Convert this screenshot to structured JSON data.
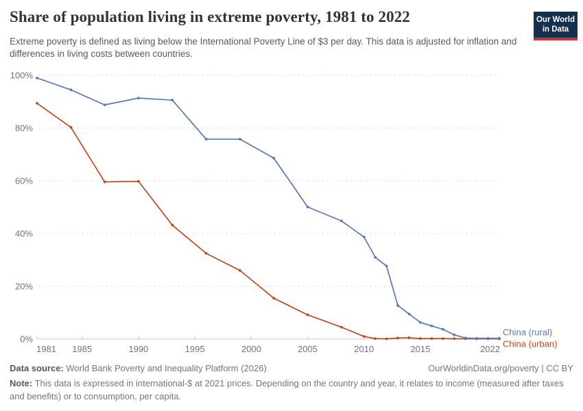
{
  "header": {
    "title": "Share of population living in extreme poverty, 1981 to 2022",
    "subtitle": "Extreme poverty is defined as living below the International Poverty Line of $3 per day. This data is adjusted for inflation and differences in living costs between countries.",
    "logo": {
      "line1": "Our World",
      "line2": "in Data",
      "bg_color": "#15304E",
      "bar_color": "#D0342C"
    }
  },
  "chart_data": {
    "type": "line",
    "title": "Share of population living in extreme poverty, 1981 to 2022",
    "xlabel": "",
    "ylabel": "",
    "xlim": [
      1981,
      2022
    ],
    "ylim": [
      0,
      100
    ],
    "yticks": [
      0,
      20,
      40,
      60,
      80,
      100
    ],
    "ytick_suffix": "%",
    "xticks": [
      1981,
      1985,
      1990,
      1995,
      2000,
      2005,
      2010,
      2015,
      2022
    ],
    "grid": "horizontal-dashed",
    "legend": "line-end-labels",
    "axis_color": "#c8c8c8",
    "grid_color": "#dcdcdc",
    "tick_label_color": "#737373",
    "x": [
      1981,
      1984,
      1987,
      1990,
      1993,
      1996,
      1999,
      2002,
      2005,
      2008,
      2010,
      2011,
      2012,
      2013,
      2014,
      2015,
      2016,
      2017,
      2018,
      2019,
      2020,
      2021,
      2022
    ],
    "series": [
      {
        "id": "china-rural",
        "name": "China (rural)",
        "color": "#5879B0",
        "values": [
          99.0,
          94.5,
          88.8,
          91.4,
          90.6,
          75.8,
          75.8,
          68.6,
          50.1,
          44.8,
          38.7,
          31.0,
          27.7,
          12.7,
          9.5,
          6.3,
          5.0,
          3.7,
          1.6,
          0.4,
          0.3,
          0.3,
          0.3
        ]
      },
      {
        "id": "china-urban",
        "name": "China (urban)",
        "color": "#B84A21",
        "values": [
          89.4,
          80.3,
          59.6,
          59.8,
          43.2,
          32.5,
          26.0,
          15.5,
          9.2,
          4.5,
          1.0,
          0.2,
          0.1,
          0.4,
          0.5,
          0.2,
          0.2,
          0.2,
          0.15,
          0.1,
          0.1,
          0.1,
          0.1
        ]
      }
    ]
  },
  "footer": {
    "source_label": "Data source:",
    "source_text": "World Bank Poverty and Inequality Platform (2026)",
    "citation": "OurWorldinData.org/poverty | CC BY",
    "note_label": "Note:",
    "note_text": "This data is expressed in international-$ at 2021 prices. Depending on the country and year, it relates to income (measured after taxes and benefits) or to consumption, per capita."
  }
}
